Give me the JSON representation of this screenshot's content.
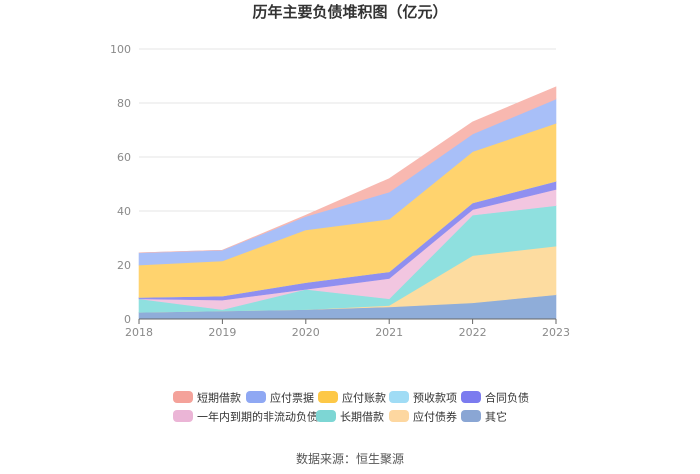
{
  "chart_data": {
    "type": "area",
    "stacked": true,
    "title": "历年主要负债堆积图（亿元）",
    "xlabel": "",
    "ylabel": "",
    "categories": [
      "2018",
      "2019",
      "2020",
      "2021",
      "2022",
      "2023"
    ],
    "ylim": [
      0,
      100
    ],
    "yticks": [
      "0",
      "20",
      "40",
      "60",
      "80",
      "100"
    ],
    "grid": true,
    "legend_position": "bottom",
    "series": [
      {
        "name": "其它",
        "color": "#8fadd9",
        "values": [
          2.5,
          3.0,
          3.5,
          4.5,
          6.0,
          9.0
        ]
      },
      {
        "name": "应付债券",
        "color": "#fddca0",
        "values": [
          0,
          0,
          0,
          0.5,
          17.5,
          18.0
        ]
      },
      {
        "name": "长期借款",
        "color": "#8fe0df",
        "values": [
          5.0,
          0.5,
          7.5,
          2.5,
          15.0,
          15.0
        ]
      },
      {
        "name": "一年内到期的非流动负债",
        "color": "#f2c6e0",
        "values": [
          0,
          3.5,
          0,
          7.5,
          2.0,
          6.0
        ]
      },
      {
        "name": "合同负债",
        "color": "#8f8ff0",
        "values": [
          0.5,
          1.5,
          2.5,
          2.5,
          2.5,
          3.0
        ]
      },
      {
        "name": "预收款项",
        "color": "#a8e0f7",
        "values": [
          0,
          0,
          0,
          0,
          0,
          0
        ]
      },
      {
        "name": "应付账款",
        "color": "#ffd36e",
        "values": [
          12.0,
          13.0,
          19.5,
          19.5,
          19.0,
          21.5
        ]
      },
      {
        "name": "应付票据",
        "color": "#a8bff8",
        "values": [
          4.5,
          4.0,
          5.0,
          10.0,
          6.5,
          9.0
        ]
      },
      {
        "name": "短期借款",
        "color": "#f8b8b0",
        "values": [
          0,
          0,
          0.5,
          5.0,
          4.5,
          4.5
        ]
      }
    ],
    "legend_order": [
      "短期借款",
      "应付票据",
      "应付账款",
      "预收款项",
      "合同负债",
      "一年内到期的非流动负债",
      "长期借款",
      "应付债券",
      "其它"
    ],
    "legend_colors": [
      "#f4a29a",
      "#8fa8f3",
      "#fdc847",
      "#a0dcf5",
      "#7b7bef",
      "#ebb5d6",
      "#7dd6d4",
      "#fdd7a0",
      "#8aa6d4"
    ],
    "source": "数据来源：恒生聚源"
  }
}
